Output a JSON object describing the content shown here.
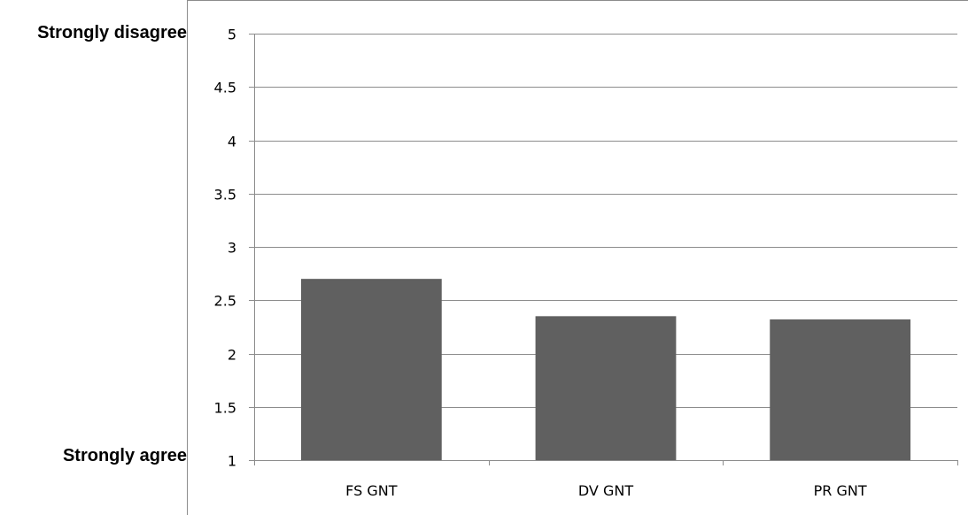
{
  "annotations": {
    "top_label": "Strongly disagree",
    "bottom_label": "Strongly agree"
  },
  "chart_data": {
    "type": "bar",
    "title": "",
    "xlabel": "",
    "ylabel": "",
    "categories": [
      "FS GNT",
      "DV GNT",
      "PR GNT"
    ],
    "values": [
      2.7,
      2.35,
      2.32
    ],
    "ylim": [
      1,
      5
    ],
    "yticks": [
      1,
      1.5,
      2,
      2.5,
      3,
      3.5,
      4,
      4.5,
      5
    ],
    "grid": true,
    "legend": "none",
    "bar_color": "#606060",
    "gridline_color": "#8c8c8c"
  }
}
